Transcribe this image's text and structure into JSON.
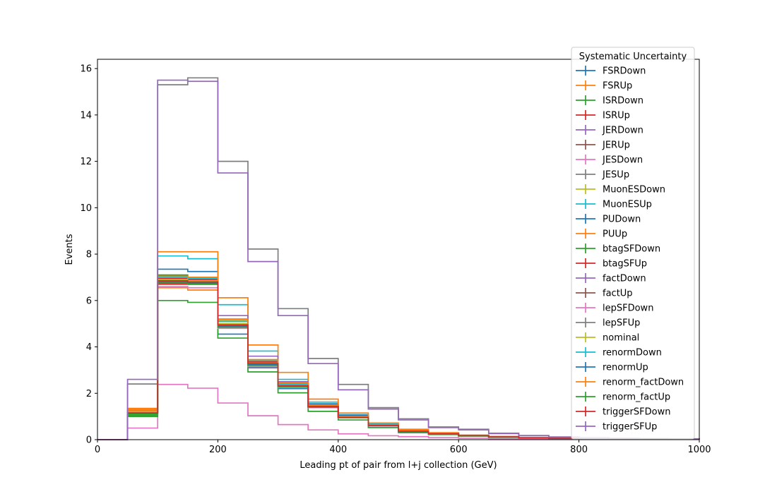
{
  "chart_data": {
    "type": "line",
    "style": "step-histogram",
    "xlabel": "Leading pt of pair from l+j collection (GeV)",
    "ylabel": "Events",
    "xlim": [
      0,
      1000
    ],
    "ylim": [
      0,
      16.4
    ],
    "x_ticks": [
      0,
      200,
      400,
      600,
      800,
      1000
    ],
    "y_ticks": [
      0,
      2,
      4,
      6,
      8,
      10,
      12,
      14,
      16
    ],
    "grid": false,
    "bin_edges": [
      0,
      50,
      100,
      150,
      200,
      250,
      300,
      350,
      400,
      450,
      500,
      550,
      600,
      650,
      700,
      750,
      800,
      850,
      900,
      950,
      1000
    ],
    "legend": {
      "title": "Systematic Uncertainty",
      "placement": "top-right"
    },
    "series": [
      {
        "name": "FSRDown",
        "color": "#1f77b4",
        "values": [
          0,
          1.2,
          6.8,
          6.75,
          4.9,
          3.2,
          2.3,
          1.4,
          0.95,
          0.6,
          0.35,
          0.25,
          0.17,
          0.12,
          0.08,
          0.06,
          0.04,
          0.03,
          0.02,
          0.02
        ]
      },
      {
        "name": "FSRUp",
        "color": "#ff7f0e",
        "values": [
          0,
          1.35,
          6.55,
          6.45,
          5.0,
          3.25,
          2.35,
          1.45,
          0.98,
          0.62,
          0.36,
          0.26,
          0.18,
          0.12,
          0.08,
          0.06,
          0.04,
          0.03,
          0.02,
          0.02
        ]
      },
      {
        "name": "ISRDown",
        "color": "#2ca02c",
        "values": [
          0,
          1.05,
          7.1,
          7.0,
          5.1,
          3.3,
          2.4,
          1.45,
          1.0,
          0.63,
          0.37,
          0.26,
          0.18,
          0.12,
          0.08,
          0.06,
          0.04,
          0.03,
          0.02,
          0.02
        ]
      },
      {
        "name": "ISRUp",
        "color": "#d62728",
        "values": [
          0,
          1.15,
          6.7,
          6.7,
          4.85,
          3.25,
          2.3,
          1.4,
          0.95,
          0.6,
          0.35,
          0.25,
          0.17,
          0.12,
          0.08,
          0.06,
          0.04,
          0.03,
          0.02,
          0.02
        ]
      },
      {
        "name": "JERDown",
        "color": "#9467bd",
        "values": [
          0,
          1.25,
          6.9,
          6.85,
          5.0,
          3.35,
          2.4,
          1.45,
          0.98,
          0.62,
          0.36,
          0.26,
          0.18,
          0.12,
          0.08,
          0.06,
          0.04,
          0.03,
          0.02,
          0.02
        ]
      },
      {
        "name": "JERUp",
        "color": "#8c564b",
        "values": [
          0,
          1.2,
          6.85,
          6.8,
          4.95,
          3.3,
          2.35,
          1.42,
          0.97,
          0.61,
          0.36,
          0.25,
          0.17,
          0.12,
          0.08,
          0.06,
          0.04,
          0.03,
          0.02,
          0.02
        ]
      },
      {
        "name": "JESDown",
        "color": "#e377c2",
        "values": [
          0,
          0.5,
          2.38,
          2.22,
          1.58,
          1.03,
          0.65,
          0.42,
          0.25,
          0.17,
          0.13,
          0.09,
          0.06,
          0.04,
          0.03,
          0.02,
          0.02,
          0.01,
          0.01,
          0.01
        ]
      },
      {
        "name": "JESUp",
        "color": "#7f7f7f",
        "values": [
          0,
          2.4,
          15.3,
          15.6,
          12.0,
          8.22,
          5.65,
          3.5,
          2.38,
          1.38,
          0.9,
          0.55,
          0.45,
          0.28,
          0.18,
          0.12,
          0.09,
          0.06,
          0.05,
          0.04
        ]
      },
      {
        "name": "MuonESDown",
        "color": "#bcbd22",
        "values": [
          0,
          1.2,
          6.85,
          6.8,
          5.15,
          3.4,
          2.4,
          1.45,
          0.98,
          0.62,
          0.36,
          0.26,
          0.18,
          0.12,
          0.08,
          0.06,
          0.04,
          0.03,
          0.02,
          0.02
        ]
      },
      {
        "name": "MuonESUp",
        "color": "#17becf",
        "values": [
          0,
          1.3,
          7.92,
          7.8,
          5.82,
          3.82,
          2.6,
          1.62,
          1.08,
          0.68,
          0.4,
          0.28,
          0.19,
          0.13,
          0.09,
          0.06,
          0.04,
          0.03,
          0.02,
          0.02
        ]
      },
      {
        "name": "PUDown",
        "color": "#1f77b4",
        "values": [
          0,
          1.15,
          7.35,
          7.25,
          4.55,
          3.1,
          2.2,
          1.55,
          1.05,
          0.6,
          0.35,
          0.25,
          0.17,
          0.12,
          0.08,
          0.06,
          0.04,
          0.03,
          0.02,
          0.02
        ]
      },
      {
        "name": "PUUp",
        "color": "#ff7f0e",
        "values": [
          0,
          1.3,
          8.1,
          8.1,
          6.12,
          4.08,
          2.9,
          1.75,
          1.15,
          0.72,
          0.45,
          0.3,
          0.2,
          0.14,
          0.09,
          0.06,
          0.04,
          0.03,
          0.02,
          0.02
        ]
      },
      {
        "name": "btagSFDown",
        "color": "#2ca02c",
        "values": [
          0,
          1.0,
          6.0,
          5.92,
          4.38,
          2.92,
          2.02,
          1.22,
          0.85,
          0.52,
          0.3,
          0.22,
          0.15,
          0.1,
          0.07,
          0.05,
          0.03,
          0.02,
          0.02,
          0.01
        ]
      },
      {
        "name": "btagSFUp",
        "color": "#d62728",
        "values": [
          0,
          1.2,
          6.95,
          6.9,
          4.95,
          3.35,
          2.35,
          1.45,
          0.98,
          0.62,
          0.36,
          0.26,
          0.18,
          0.12,
          0.08,
          0.06,
          0.04,
          0.03,
          0.02,
          0.02
        ]
      },
      {
        "name": "factDown",
        "color": "#9467bd",
        "values": [
          0,
          1.25,
          7.0,
          6.95,
          5.35,
          3.6,
          2.5,
          1.5,
          1.0,
          0.64,
          0.37,
          0.26,
          0.18,
          0.12,
          0.08,
          0.06,
          0.04,
          0.03,
          0.02,
          0.02
        ]
      },
      {
        "name": "factUp",
        "color": "#8c564b",
        "values": [
          0,
          1.15,
          6.75,
          6.7,
          4.85,
          3.2,
          2.3,
          1.4,
          0.95,
          0.6,
          0.35,
          0.25,
          0.17,
          0.12,
          0.08,
          0.06,
          0.04,
          0.03,
          0.02,
          0.02
        ]
      },
      {
        "name": "lepSFDown",
        "color": "#e377c2",
        "values": [
          0,
          1.1,
          6.6,
          6.55,
          4.8,
          3.15,
          2.25,
          1.38,
          0.94,
          0.59,
          0.34,
          0.24,
          0.17,
          0.11,
          0.08,
          0.05,
          0.04,
          0.03,
          0.02,
          0.02
        ]
      },
      {
        "name": "lepSFUp",
        "color": "#7f7f7f",
        "values": [
          0,
          1.25,
          7.05,
          7.0,
          5.2,
          3.45,
          2.45,
          1.48,
          1.0,
          0.63,
          0.37,
          0.26,
          0.18,
          0.12,
          0.08,
          0.06,
          0.04,
          0.03,
          0.02,
          0.02
        ]
      },
      {
        "name": "nominal",
        "color": "#bcbd22",
        "values": [
          0,
          1.2,
          6.9,
          6.85,
          5.0,
          3.3,
          2.35,
          1.44,
          0.97,
          0.61,
          0.36,
          0.25,
          0.17,
          0.12,
          0.08,
          0.06,
          0.04,
          0.03,
          0.02,
          0.02
        ]
      },
      {
        "name": "renormDown",
        "color": "#17becf",
        "values": [
          0,
          1.25,
          7.0,
          6.95,
          5.1,
          3.4,
          2.4,
          1.47,
          0.99,
          0.62,
          0.37,
          0.26,
          0.18,
          0.12,
          0.08,
          0.06,
          0.04,
          0.03,
          0.02,
          0.02
        ]
      },
      {
        "name": "renormUp",
        "color": "#1f77b4",
        "values": [
          0,
          1.15,
          6.8,
          6.75,
          4.9,
          3.25,
          2.3,
          1.42,
          0.96,
          0.6,
          0.35,
          0.25,
          0.17,
          0.12,
          0.08,
          0.06,
          0.04,
          0.03,
          0.02,
          0.02
        ]
      },
      {
        "name": "renorm_factDown",
        "color": "#ff7f0e",
        "values": [
          0,
          1.25,
          7.05,
          7.0,
          5.2,
          3.45,
          2.45,
          1.48,
          1.0,
          0.63,
          0.37,
          0.26,
          0.18,
          0.12,
          0.08,
          0.06,
          0.04,
          0.03,
          0.02,
          0.02
        ]
      },
      {
        "name": "renorm_factUp",
        "color": "#2ca02c",
        "values": [
          0,
          1.1,
          6.75,
          6.7,
          4.85,
          3.2,
          2.28,
          1.4,
          0.95,
          0.6,
          0.35,
          0.25,
          0.17,
          0.12,
          0.08,
          0.06,
          0.04,
          0.03,
          0.02,
          0.02
        ]
      },
      {
        "name": "triggerSFDown",
        "color": "#d62728",
        "values": [
          0,
          1.15,
          6.85,
          6.8,
          4.95,
          3.28,
          2.33,
          1.43,
          0.96,
          0.61,
          0.36,
          0.25,
          0.17,
          0.12,
          0.08,
          0.06,
          0.04,
          0.03,
          0.02,
          0.02
        ]
      },
      {
        "name": "triggerSFUp",
        "color": "#9467bd",
        "values": [
          0,
          2.6,
          15.5,
          15.45,
          11.5,
          7.68,
          5.35,
          3.28,
          2.15,
          1.32,
          0.85,
          0.52,
          0.42,
          0.26,
          0.17,
          0.11,
          0.08,
          0.06,
          0.04,
          0.03
        ]
      }
    ]
  }
}
